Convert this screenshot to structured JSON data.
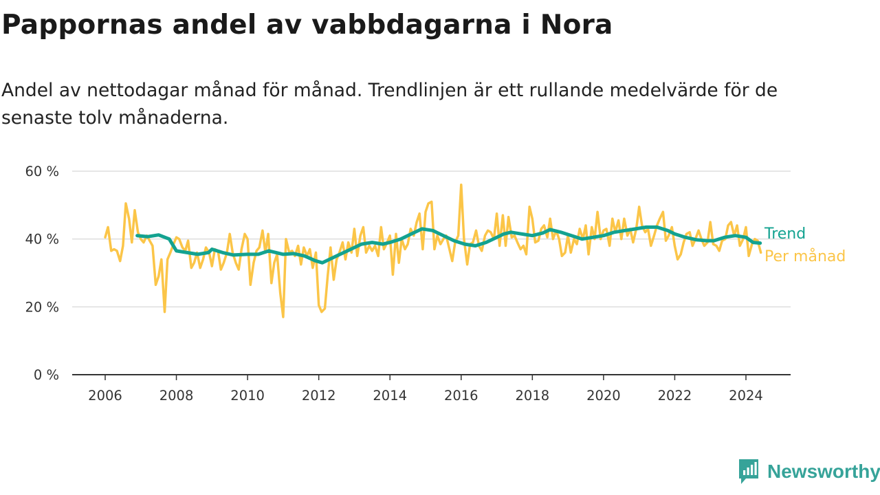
{
  "title": "Pappornas andel av vabbdagarna i Nora",
  "subtitle": "Andel av nettodagar månad för månad. Trendlinjen är ett rullande medelvärde för de senaste tolv månaderna.",
  "brand": {
    "name": "Newsworthy",
    "icon": "newsworthy-logo-icon"
  },
  "colors": {
    "trend": "#13a290",
    "monthly": "#fbc548",
    "grid": "#dddddd",
    "axis": "#333333"
  },
  "chart_data": {
    "type": "line",
    "title": "Pappornas andel av vabbdagarna i Nora",
    "subtitle": "Andel av nettodagar månad för månad. Trendlinjen är ett rullande medelvärde för de senaste tolv månaderna.",
    "xlabel": "",
    "ylabel": "",
    "xlim": [
      2006,
      2024.4
    ],
    "ylim": [
      0,
      60
    ],
    "yticks": [
      0,
      20,
      40,
      60
    ],
    "ytick_labels": [
      "0 %",
      "20 %",
      "40 %",
      "60 %"
    ],
    "xticks": [
      2006,
      2008,
      2010,
      2012,
      2014,
      2016,
      2018,
      2020,
      2022,
      2024
    ],
    "xtick_labels": [
      "2006",
      "2008",
      "2010",
      "2012",
      "2014",
      "2016",
      "2018",
      "2020",
      "2022",
      "2024"
    ],
    "grid": true,
    "legend": "direct labels at right end of lines",
    "series": [
      {
        "name": "Trend",
        "color": "#13a290",
        "points": [
          [
            2006.9,
            41
          ],
          [
            2007.2,
            40.7
          ],
          [
            2007.5,
            41.2
          ],
          [
            2007.8,
            40
          ],
          [
            2008.0,
            36.5
          ],
          [
            2008.3,
            36
          ],
          [
            2008.6,
            35.5
          ],
          [
            2008.9,
            36
          ],
          [
            2009.0,
            37
          ],
          [
            2009.3,
            36
          ],
          [
            2009.6,
            35.3
          ],
          [
            2010.0,
            35.5
          ],
          [
            2010.3,
            35.5
          ],
          [
            2010.6,
            36.5
          ],
          [
            2011.0,
            35.5
          ],
          [
            2011.3,
            35.7
          ],
          [
            2011.6,
            35
          ],
          [
            2011.9,
            33.6
          ],
          [
            2012.1,
            33
          ],
          [
            2012.5,
            35
          ],
          [
            2012.9,
            37
          ],
          [
            2013.2,
            38.5
          ],
          [
            2013.5,
            39
          ],
          [
            2013.8,
            38.5
          ],
          [
            2014.0,
            39
          ],
          [
            2014.3,
            40
          ],
          [
            2014.6,
            41.5
          ],
          [
            2014.9,
            43
          ],
          [
            2015.2,
            42.5
          ],
          [
            2015.5,
            41
          ],
          [
            2015.8,
            39.5
          ],
          [
            2016.1,
            38.5
          ],
          [
            2016.4,
            38
          ],
          [
            2016.7,
            39
          ],
          [
            2017.0,
            40.5
          ],
          [
            2017.2,
            41.5
          ],
          [
            2017.4,
            42
          ],
          [
            2017.7,
            41.5
          ],
          [
            2018.0,
            41
          ],
          [
            2018.3,
            41.8
          ],
          [
            2018.5,
            42.8
          ],
          [
            2018.8,
            42
          ],
          [
            2019.1,
            41
          ],
          [
            2019.4,
            40
          ],
          [
            2019.7,
            40.5
          ],
          [
            2020.0,
            41
          ],
          [
            2020.3,
            42
          ],
          [
            2020.6,
            42.5
          ],
          [
            2020.9,
            43
          ],
          [
            2021.2,
            43.5
          ],
          [
            2021.5,
            43.5
          ],
          [
            2021.8,
            42.5
          ],
          [
            2022.0,
            41.5
          ],
          [
            2022.3,
            40.5
          ],
          [
            2022.6,
            39.8
          ],
          [
            2022.9,
            39.5
          ],
          [
            2023.1,
            39.5
          ],
          [
            2023.4,
            40.5
          ],
          [
            2023.7,
            41
          ],
          [
            2024.0,
            40.5
          ],
          [
            2024.2,
            39
          ],
          [
            2024.4,
            38.8
          ]
        ]
      },
      {
        "name": "Per månad",
        "color": "#fbc548",
        "points": [
          [
            2006.0,
            40.5
          ],
          [
            2006.08,
            43.5
          ],
          [
            2006.17,
            36.5
          ],
          [
            2006.25,
            37
          ],
          [
            2006.33,
            36.5
          ],
          [
            2006.42,
            33.5
          ],
          [
            2006.5,
            38
          ],
          [
            2006.58,
            50.5
          ],
          [
            2006.67,
            46
          ],
          [
            2006.75,
            39
          ],
          [
            2006.83,
            48.5
          ],
          [
            2006.92,
            42
          ],
          [
            2007.0,
            40
          ],
          [
            2007.08,
            39
          ],
          [
            2007.17,
            41
          ],
          [
            2007.25,
            39.5
          ],
          [
            2007.33,
            38
          ],
          [
            2007.42,
            26.5
          ],
          [
            2007.5,
            29
          ],
          [
            2007.58,
            34
          ],
          [
            2007.67,
            18.5
          ],
          [
            2007.75,
            34
          ],
          [
            2007.83,
            36
          ],
          [
            2007.92,
            38.5
          ],
          [
            2008.0,
            40.5
          ],
          [
            2008.08,
            40
          ],
          [
            2008.17,
            37.5
          ],
          [
            2008.25,
            36.5
          ],
          [
            2008.33,
            39.5
          ],
          [
            2008.42,
            31.5
          ],
          [
            2008.5,
            33
          ],
          [
            2008.58,
            36
          ],
          [
            2008.67,
            31.5
          ],
          [
            2008.75,
            34
          ],
          [
            2008.83,
            37.5
          ],
          [
            2008.92,
            36
          ],
          [
            2009.0,
            32
          ],
          [
            2009.08,
            37
          ],
          [
            2009.17,
            36.5
          ],
          [
            2009.25,
            31
          ],
          [
            2009.33,
            33
          ],
          [
            2009.42,
            36
          ],
          [
            2009.5,
            41.5
          ],
          [
            2009.58,
            36
          ],
          [
            2009.67,
            33
          ],
          [
            2009.75,
            31
          ],
          [
            2009.83,
            37
          ],
          [
            2009.92,
            41.5
          ],
          [
            2010.0,
            40
          ],
          [
            2010.08,
            26.5
          ],
          [
            2010.17,
            33
          ],
          [
            2010.25,
            36.5
          ],
          [
            2010.33,
            37.5
          ],
          [
            2010.42,
            42.5
          ],
          [
            2010.5,
            36
          ],
          [
            2010.58,
            41.5
          ],
          [
            2010.67,
            27
          ],
          [
            2010.75,
            33
          ],
          [
            2010.83,
            35.5
          ],
          [
            2010.92,
            24
          ],
          [
            2011.0,
            17
          ],
          [
            2011.08,
            40
          ],
          [
            2011.17,
            36
          ],
          [
            2011.25,
            36.5
          ],
          [
            2011.33,
            35
          ],
          [
            2011.42,
            38
          ],
          [
            2011.5,
            32.5
          ],
          [
            2011.58,
            37.5
          ],
          [
            2011.67,
            35
          ],
          [
            2011.75,
            37
          ],
          [
            2011.83,
            31.5
          ],
          [
            2011.92,
            36
          ],
          [
            2012.0,
            20.5
          ],
          [
            2012.08,
            18.5
          ],
          [
            2012.17,
            19.5
          ],
          [
            2012.25,
            29
          ],
          [
            2012.33,
            37.5
          ],
          [
            2012.42,
            28
          ],
          [
            2012.5,
            34
          ],
          [
            2012.58,
            36
          ],
          [
            2012.67,
            39
          ],
          [
            2012.75,
            34
          ],
          [
            2012.83,
            39
          ],
          [
            2012.92,
            36
          ],
          [
            2013.0,
            43
          ],
          [
            2013.08,
            35
          ],
          [
            2013.17,
            41
          ],
          [
            2013.25,
            43.5
          ],
          [
            2013.33,
            36
          ],
          [
            2013.42,
            38
          ],
          [
            2013.5,
            36.5
          ],
          [
            2013.58,
            38
          ],
          [
            2013.67,
            35
          ],
          [
            2013.75,
            43.5
          ],
          [
            2013.83,
            37
          ],
          [
            2013.92,
            39
          ],
          [
            2014.0,
            41
          ],
          [
            2014.08,
            29.5
          ],
          [
            2014.17,
            41.5
          ],
          [
            2014.25,
            33
          ],
          [
            2014.33,
            40
          ],
          [
            2014.42,
            37
          ],
          [
            2014.5,
            38.5
          ],
          [
            2014.58,
            43
          ],
          [
            2014.67,
            41
          ],
          [
            2014.75,
            45
          ],
          [
            2014.83,
            47.5
          ],
          [
            2014.92,
            37
          ],
          [
            2015.0,
            48
          ],
          [
            2015.08,
            50.5
          ],
          [
            2015.17,
            51
          ],
          [
            2015.25,
            37
          ],
          [
            2015.33,
            41
          ],
          [
            2015.42,
            38.5
          ],
          [
            2015.5,
            40
          ],
          [
            2015.58,
            41
          ],
          [
            2015.67,
            37
          ],
          [
            2015.75,
            33.5
          ],
          [
            2015.83,
            39
          ],
          [
            2015.92,
            41
          ],
          [
            2016.0,
            56
          ],
          [
            2016.08,
            40
          ],
          [
            2016.17,
            32.5
          ],
          [
            2016.25,
            38.5
          ],
          [
            2016.33,
            39
          ],
          [
            2016.42,
            42.5
          ],
          [
            2016.5,
            38
          ],
          [
            2016.58,
            36.5
          ],
          [
            2016.67,
            41
          ],
          [
            2016.75,
            42.5
          ],
          [
            2016.83,
            42
          ],
          [
            2016.92,
            40
          ],
          [
            2017.0,
            47.5
          ],
          [
            2017.08,
            38
          ],
          [
            2017.17,
            47
          ],
          [
            2017.25,
            38
          ],
          [
            2017.33,
            46.5
          ],
          [
            2017.42,
            40.5
          ],
          [
            2017.5,
            41
          ],
          [
            2017.58,
            39
          ],
          [
            2017.67,
            37
          ],
          [
            2017.75,
            38
          ],
          [
            2017.83,
            35.5
          ],
          [
            2017.92,
            49.5
          ],
          [
            2018.0,
            46
          ],
          [
            2018.08,
            39
          ],
          [
            2018.17,
            39.5
          ],
          [
            2018.25,
            43
          ],
          [
            2018.33,
            44
          ],
          [
            2018.42,
            40.5
          ],
          [
            2018.5,
            46
          ],
          [
            2018.58,
            40
          ],
          [
            2018.67,
            42.5
          ],
          [
            2018.75,
            40
          ],
          [
            2018.83,
            35
          ],
          [
            2018.92,
            36
          ],
          [
            2019.0,
            41
          ],
          [
            2019.08,
            36
          ],
          [
            2019.17,
            40
          ],
          [
            2019.25,
            38.5
          ],
          [
            2019.33,
            43
          ],
          [
            2019.42,
            40
          ],
          [
            2019.5,
            44
          ],
          [
            2019.58,
            35.5
          ],
          [
            2019.67,
            43.5
          ],
          [
            2019.75,
            40
          ],
          [
            2019.83,
            48
          ],
          [
            2019.92,
            40
          ],
          [
            2020.0,
            42.5
          ],
          [
            2020.08,
            43
          ],
          [
            2020.17,
            38
          ],
          [
            2020.25,
            46
          ],
          [
            2020.33,
            42
          ],
          [
            2020.42,
            45.5
          ],
          [
            2020.5,
            40
          ],
          [
            2020.58,
            46
          ],
          [
            2020.67,
            41
          ],
          [
            2020.75,
            43
          ],
          [
            2020.83,
            39
          ],
          [
            2020.92,
            43
          ],
          [
            2021.0,
            49.5
          ],
          [
            2021.08,
            44
          ],
          [
            2021.17,
            42
          ],
          [
            2021.25,
            43
          ],
          [
            2021.33,
            38
          ],
          [
            2021.42,
            41
          ],
          [
            2021.5,
            44
          ],
          [
            2021.58,
            46
          ],
          [
            2021.67,
            48
          ],
          [
            2021.75,
            39.5
          ],
          [
            2021.83,
            41
          ],
          [
            2021.92,
            43.5
          ],
          [
            2022.0,
            38
          ],
          [
            2022.08,
            34
          ],
          [
            2022.17,
            35.5
          ],
          [
            2022.25,
            39
          ],
          [
            2022.33,
            41.5
          ],
          [
            2022.42,
            42
          ],
          [
            2022.5,
            38
          ],
          [
            2022.58,
            40
          ],
          [
            2022.67,
            42.5
          ],
          [
            2022.75,
            40
          ],
          [
            2022.83,
            38
          ],
          [
            2022.92,
            39
          ],
          [
            2023.0,
            45
          ],
          [
            2023.08,
            38.5
          ],
          [
            2023.17,
            38
          ],
          [
            2023.25,
            36.5
          ],
          [
            2023.33,
            39.5
          ],
          [
            2023.42,
            40
          ],
          [
            2023.5,
            44
          ],
          [
            2023.58,
            45
          ],
          [
            2023.67,
            41
          ],
          [
            2023.75,
            44
          ],
          [
            2023.83,
            38
          ],
          [
            2023.92,
            40
          ],
          [
            2024.0,
            43.5
          ],
          [
            2024.08,
            35
          ],
          [
            2024.17,
            38.5
          ],
          [
            2024.25,
            40
          ],
          [
            2024.33,
            39.5
          ],
          [
            2024.42,
            36
          ]
        ]
      }
    ]
  }
}
